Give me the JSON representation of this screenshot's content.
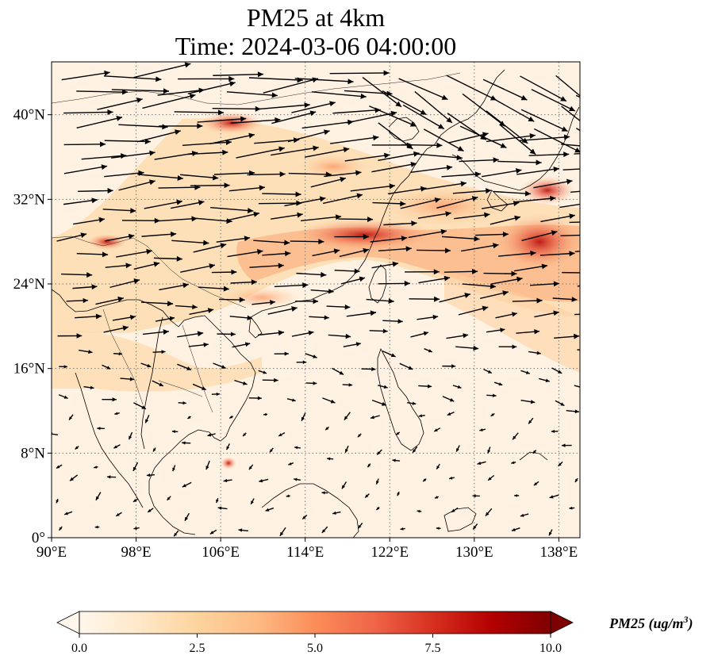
{
  "title": {
    "line1": "PM25 at 4km",
    "line2": "Time: 2024-03-06 04:00:00"
  },
  "map": {
    "projection": "PlateCarree",
    "lon_range": [
      90,
      140
    ],
    "lat_range": [
      0,
      45
    ],
    "gridlines": "dotted",
    "x_ticks": [
      {
        "value": 90,
        "label": "90°E"
      },
      {
        "value": 98,
        "label": "98°E"
      },
      {
        "value": 106,
        "label": "106°E"
      },
      {
        "value": 114,
        "label": "114°E"
      },
      {
        "value": 122,
        "label": "122°E"
      },
      {
        "value": 130,
        "label": "130°E"
      },
      {
        "value": 138,
        "label": "138°E"
      }
    ],
    "y_ticks": [
      {
        "value": 0,
        "label": "0°"
      },
      {
        "value": 8,
        "label": "8°N"
      },
      {
        "value": 16,
        "label": "16°N"
      },
      {
        "value": 24,
        "label": "24°N"
      },
      {
        "value": 32,
        "label": "32°N"
      },
      {
        "value": 40,
        "label": "40°N"
      }
    ],
    "field_variable": "PM25",
    "colormap": "OrRd",
    "high_concentration_regions": [
      {
        "lon": 120,
        "lat": 28,
        "value": 6.0
      },
      {
        "lon": 135,
        "lat": 28,
        "value": 8.5
      },
      {
        "lon": 136,
        "lat": 33,
        "value": 7.5
      },
      {
        "lon": 107,
        "lat": 39.5,
        "value": 5.5
      },
      {
        "lon": 95,
        "lat": 28,
        "value": 7.0
      },
      {
        "lon": 106.5,
        "lat": 7,
        "value": 6.0
      },
      {
        "lon": 117,
        "lat": 35.5,
        "value": 5.0
      }
    ],
    "wind_flow": "westerly"
  },
  "colorbar": {
    "label": "PM25 (ug/m³)",
    "label_parts": {
      "main": "PM25 (ug/m",
      "sup": "3",
      "tail": ")"
    },
    "range": [
      0,
      10
    ],
    "extend": "both",
    "ticks": [
      {
        "value": 0,
        "label": "0.0"
      },
      {
        "value": 2.5,
        "label": "2.5"
      },
      {
        "value": 5,
        "label": "5.0"
      },
      {
        "value": 7.5,
        "label": "7.5"
      },
      {
        "value": 10,
        "label": "10.0"
      }
    ],
    "colors": [
      "#fff7ec",
      "#fee8c8",
      "#fdd49e",
      "#fdbb84",
      "#fc8d59",
      "#ef6548",
      "#d7301f",
      "#b30000",
      "#7f0000"
    ]
  }
}
